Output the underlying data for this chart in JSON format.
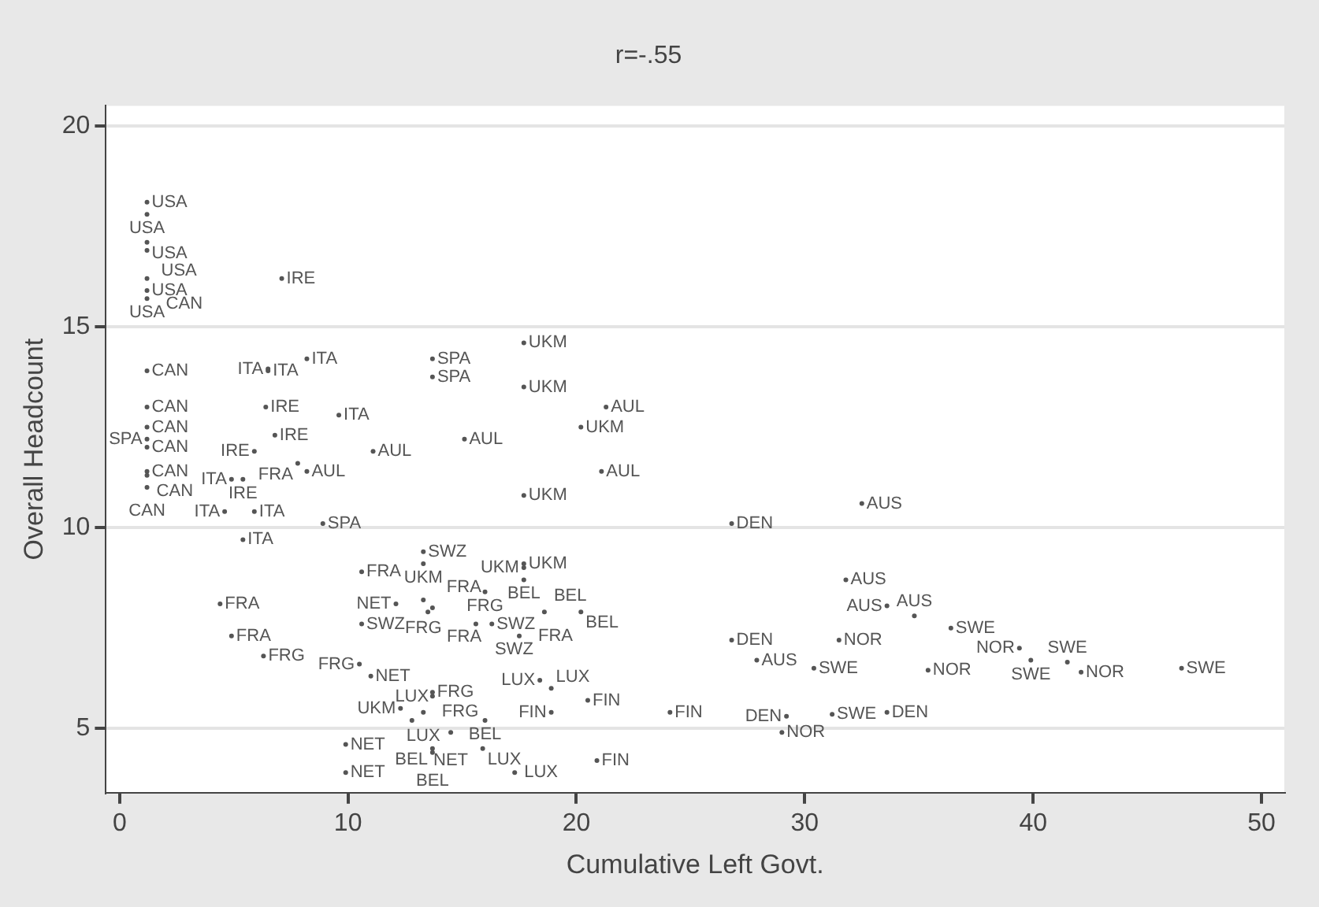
{
  "chart_data": {
    "type": "scatter",
    "title": "r=-.55",
    "xlabel": "Cumulative Left Govt.",
    "ylabel": "Overall Headcount",
    "xlim": [
      -0.6,
      51
    ],
    "xticks": [
      0,
      10,
      20,
      30,
      40,
      50
    ],
    "ylim": [
      3.4,
      20.5
    ],
    "yticks": [
      5,
      10,
      15,
      20
    ],
    "grid": "y",
    "marker": "circle",
    "legend": false,
    "series": [
      {
        "color": "#555555",
        "x": [
          1.2,
          1.2,
          1.2,
          1.2,
          1.2,
          1.2,
          1.2,
          1.2,
          1.2,
          1.2,
          1.2,
          1.2,
          1.2,
          1.2,
          1.2,
          7.1,
          6.5,
          6.5,
          8.2,
          6.4,
          9.6,
          6.8,
          5.9,
          7.8,
          8.2,
          11.1,
          4.9,
          5.4,
          4.6,
          5.9,
          8.9,
          5.4,
          17.7,
          13.7,
          13.7,
          17.7,
          21.3,
          20.2,
          15.1,
          21.1,
          17.7,
          4.4,
          4.9,
          6.3,
          10.6,
          10.6,
          10.5,
          11.0,
          9.9,
          9.9,
          13.3,
          13.3,
          17.7,
          17.7,
          17.7,
          16.0,
          12.1,
          13.3,
          13.7,
          13.5,
          15.6,
          16.3,
          17.5,
          18.6,
          20.2,
          18.4,
          18.9,
          20.5,
          18.9,
          24.1,
          13.7,
          13.7,
          12.3,
          13.3,
          12.8,
          16.0,
          14.5,
          13.7,
          13.7,
          15.9,
          17.3,
          20.9,
          32.5,
          26.8,
          31.8,
          33.6,
          34.8,
          36.4,
          26.8,
          31.5,
          27.9,
          30.4,
          35.4,
          39.4,
          39.9,
          41.5,
          42.1,
          46.5,
          29.2,
          31.2,
          33.6,
          29.0
        ],
        "values": [
          18.1,
          17.8,
          17.1,
          16.9,
          15.9,
          15.7,
          16.2,
          13.9,
          13.0,
          12.5,
          12.0,
          11.4,
          11.3,
          11.0,
          12.2,
          16.2,
          13.9,
          13.95,
          14.2,
          13.0,
          12.8,
          12.3,
          11.9,
          11.6,
          11.4,
          11.9,
          11.2,
          11.2,
          10.4,
          10.4,
          10.1,
          9.7,
          14.6,
          14.2,
          13.75,
          13.5,
          13.0,
          12.5,
          12.2,
          11.4,
          10.8,
          8.1,
          7.3,
          6.8,
          8.9,
          7.6,
          6.6,
          6.3,
          4.6,
          3.9,
          9.4,
          9.1,
          9.1,
          9.0,
          8.7,
          8.4,
          8.1,
          8.2,
          8.0,
          7.9,
          7.6,
          7.6,
          7.3,
          7.9,
          7.9,
          6.2,
          6.0,
          5.7,
          5.4,
          5.4,
          5.9,
          5.8,
          5.5,
          5.4,
          5.2,
          5.2,
          4.9,
          4.5,
          4.4,
          4.5,
          3.9,
          4.2,
          10.6,
          10.1,
          8.7,
          8.05,
          7.8,
          7.5,
          7.2,
          7.2,
          6.7,
          6.5,
          6.45,
          7.0,
          6.7,
          6.65,
          6.4,
          6.5,
          5.3,
          5.35,
          5.4,
          4.9
        ],
        "value_labels": [
          "USA",
          "USA",
          "USA",
          "USA",
          "USA",
          "USA",
          "CAN",
          "CAN",
          "CAN",
          "CAN",
          "CAN",
          "CAN",
          "CAN",
          "CAN",
          "SPA",
          "IRE",
          "ITA",
          "ITA",
          "ITA",
          "IRE",
          "ITA",
          "IRE",
          "IRE",
          "FRA",
          "AUL",
          "AUL",
          "ITA",
          "IRE",
          "ITA",
          "ITA",
          "SPA",
          "ITA",
          "UKM",
          "SPA",
          "SPA",
          "UKM",
          "AUL",
          "UKM",
          "AUL",
          "AUL",
          "UKM",
          "FRA",
          "FRA",
          "FRG",
          "FRA",
          "SWZ",
          "FRG",
          "NET",
          "NET",
          "NET",
          "SWZ",
          "UKM",
          "UKM",
          "UKM",
          "BEL",
          "FRG",
          "NET",
          "FRG",
          "FRA",
          "FRA",
          "SWZ",
          "SWZ",
          "FRA",
          "BEL",
          "BEL",
          "LUX",
          "LUX",
          "FIN",
          "FIN",
          "FIN",
          "FRG",
          "FRG",
          "UKM",
          "LUX",
          "LUX",
          "BEL",
          "NET",
          "BEL",
          "BEL",
          "LUX",
          "LUX",
          "FIN",
          "AUS",
          "DEN",
          "AUS",
          "AUS",
          "AUS",
          "SWE",
          "DEN",
          "NOR",
          "AUS",
          "SWE",
          "NOR",
          "NOR",
          "SWE",
          "SWE",
          "NOR",
          "SWE",
          "DEN",
          "SWE",
          "DEN",
          "NOR"
        ]
      }
    ]
  }
}
